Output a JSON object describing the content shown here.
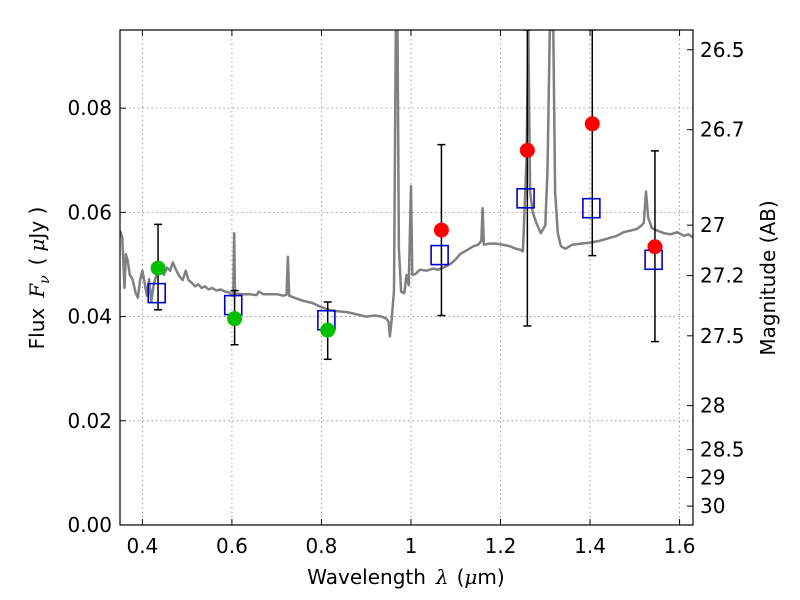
{
  "chart_data": {
    "type": "scatter",
    "title": "",
    "xlabel": "Wavelength",
    "xlabel_symbol": "λ",
    "xlabel_unit_open": "(",
    "xlabel_unit_mu": "μ",
    "xlabel_unit_rest": "m)",
    "ylabel": "Flux",
    "ylabel_symbol": "F",
    "ylabel_subscript": "ν",
    "ylabel_unit_open": "(",
    "ylabel_unit_mu": "μ",
    "ylabel_unit_rest": "Jy )",
    "y2label": "Magnitude (AB)",
    "xlim": [
      0.35,
      1.63
    ],
    "ylim": [
      0.0,
      0.095
    ],
    "grid": true,
    "x_ticks": [
      {
        "value": 0.4,
        "label": "0.4"
      },
      {
        "value": 0.6,
        "label": "0.6"
      },
      {
        "value": 0.8,
        "label": "0.8"
      },
      {
        "value": 1.0,
        "label": "1"
      },
      {
        "value": 1.2,
        "label": "1.2"
      },
      {
        "value": 1.4,
        "label": "1.4"
      },
      {
        "value": 1.6,
        "label": "1.6"
      }
    ],
    "y_ticks": [
      {
        "value": 0.0,
        "label": "0.00"
      },
      {
        "value": 0.02,
        "label": "0.02"
      },
      {
        "value": 0.04,
        "label": "0.04"
      },
      {
        "value": 0.06,
        "label": "0.06"
      },
      {
        "value": 0.08,
        "label": "0.08"
      }
    ],
    "y2_ticks": [
      {
        "value": 26.5,
        "label": "26.5"
      },
      {
        "value": 26.7,
        "label": "26.7"
      },
      {
        "value": 27.0,
        "label": "27"
      },
      {
        "value": 27.2,
        "label": "27.2"
      },
      {
        "value": 27.5,
        "label": "27.5"
      },
      {
        "value": 28.0,
        "label": "28"
      },
      {
        "value": 28.5,
        "label": "28.5"
      },
      {
        "value": 29.0,
        "label": "29"
      },
      {
        "value": 30.0,
        "label": "30"
      }
    ],
    "colors": {
      "model_line": "#808080",
      "observed_blue": "#00c000",
      "observed_red": "#ff0000",
      "model_photometry": "#0000cc",
      "error_bar": "#000000",
      "grid": "#888888"
    },
    "observed_points": [
      {
        "x": 0.435,
        "y": 0.0493,
        "yerr_low": 0.0413,
        "yerr_high": 0.0577,
        "color": "green"
      },
      {
        "x": 0.606,
        "y": 0.0396,
        "yerr_low": 0.0346,
        "yerr_high": 0.045,
        "color": "green"
      },
      {
        "x": 0.814,
        "y": 0.0374,
        "yerr_low": 0.0318,
        "yerr_high": 0.0428,
        "color": "green"
      },
      {
        "x": 1.068,
        "y": 0.0566,
        "yerr_low": 0.0402,
        "yerr_high": 0.073,
        "color": "red"
      },
      {
        "x": 1.26,
        "y": 0.0719,
        "yerr_low": 0.0382,
        "yerr_high": 0.095,
        "color": "red"
      },
      {
        "x": 1.405,
        "y": 0.077,
        "yerr_low": 0.0517,
        "yerr_high": 0.095,
        "color": "red"
      },
      {
        "x": 1.545,
        "y": 0.0534,
        "yerr_low": 0.0352,
        "yerr_high": 0.0718,
        "color": "red"
      }
    ],
    "model_photometry": [
      {
        "x": 0.432,
        "y": 0.0445
      },
      {
        "x": 0.603,
        "y": 0.0422
      },
      {
        "x": 0.811,
        "y": 0.0393
      },
      {
        "x": 1.064,
        "y": 0.0518
      },
      {
        "x": 1.256,
        "y": 0.0627
      },
      {
        "x": 1.403,
        "y": 0.0608
      },
      {
        "x": 1.542,
        "y": 0.0509
      }
    ],
    "model_spectrum": [
      [
        0.35,
        0.0565
      ],
      [
        0.355,
        0.0552
      ],
      [
        0.36,
        0.0455
      ],
      [
        0.363,
        0.052
      ],
      [
        0.367,
        0.0508
      ],
      [
        0.372,
        0.048
      ],
      [
        0.378,
        0.0472
      ],
      [
        0.385,
        0.0445
      ],
      [
        0.39,
        0.0436
      ],
      [
        0.395,
        0.047
      ],
      [
        0.4,
        0.0488
      ],
      [
        0.405,
        0.0465
      ],
      [
        0.41,
        0.044
      ],
      [
        0.415,
        0.0472
      ],
      [
        0.42,
        0.0428
      ],
      [
        0.425,
        0.046
      ],
      [
        0.432,
        0.0482
      ],
      [
        0.438,
        0.0495
      ],
      [
        0.443,
        0.0488
      ],
      [
        0.448,
        0.048
      ],
      [
        0.455,
        0.0494
      ],
      [
        0.462,
        0.0488
      ],
      [
        0.468,
        0.0504
      ],
      [
        0.475,
        0.049
      ],
      [
        0.482,
        0.0478
      ],
      [
        0.49,
        0.047
      ],
      [
        0.497,
        0.0488
      ],
      [
        0.503,
        0.047
      ],
      [
        0.51,
        0.0465
      ],
      [
        0.518,
        0.0458
      ],
      [
        0.525,
        0.0462
      ],
      [
        0.532,
        0.0455
      ],
      [
        0.54,
        0.0458
      ],
      [
        0.548,
        0.0452
      ],
      [
        0.556,
        0.0455
      ],
      [
        0.565,
        0.045
      ],
      [
        0.575,
        0.0452
      ],
      [
        0.585,
        0.0448
      ],
      [
        0.595,
        0.0446
      ],
      [
        0.6,
        0.044
      ],
      [
        0.603,
        0.044
      ],
      [
        0.605,
        0.056
      ],
      [
        0.607,
        0.0442
      ],
      [
        0.612,
        0.0444
      ],
      [
        0.625,
        0.0443
      ],
      [
        0.64,
        0.0443
      ],
      [
        0.655,
        0.0441
      ],
      [
        0.66,
        0.0448
      ],
      [
        0.67,
        0.0443
      ],
      [
        0.685,
        0.0443
      ],
      [
        0.7,
        0.0443
      ],
      [
        0.715,
        0.044
      ],
      [
        0.722,
        0.0442
      ],
      [
        0.725,
        0.0515
      ],
      [
        0.728,
        0.044
      ],
      [
        0.74,
        0.0436
      ],
      [
        0.76,
        0.043
      ],
      [
        0.78,
        0.0426
      ],
      [
        0.8,
        0.0418
      ],
      [
        0.82,
        0.0412
      ],
      [
        0.84,
        0.041
      ],
      [
        0.86,
        0.0408
      ],
      [
        0.88,
        0.0404
      ],
      [
        0.9,
        0.04
      ],
      [
        0.92,
        0.0402
      ],
      [
        0.935,
        0.04
      ],
      [
        0.945,
        0.0396
      ],
      [
        0.95,
        0.039
      ],
      [
        0.953,
        0.0362
      ],
      [
        0.957,
        0.0395
      ],
      [
        0.962,
        0.045
      ],
      [
        0.966,
        0.095
      ],
      [
        0.97,
        0.095
      ],
      [
        0.973,
        0.053
      ],
      [
        0.978,
        0.0448
      ],
      [
        0.985,
        0.0445
      ],
      [
        0.99,
        0.048
      ],
      [
        0.995,
        0.046
      ],
      [
        1.0,
        0.065
      ],
      [
        1.003,
        0.048
      ],
      [
        1.01,
        0.0482
      ],
      [
        1.02,
        0.049
      ],
      [
        1.035,
        0.0488
      ],
      [
        1.05,
        0.0492
      ],
      [
        1.06,
        0.049
      ],
      [
        1.075,
        0.0495
      ],
      [
        1.09,
        0.0502
      ],
      [
        1.1,
        0.051
      ],
      [
        1.11,
        0.052
      ],
      [
        1.12,
        0.0525
      ],
      [
        1.13,
        0.053
      ],
      [
        1.14,
        0.0535
      ],
      [
        1.15,
        0.0538
      ],
      [
        1.157,
        0.0545
      ],
      [
        1.16,
        0.0608
      ],
      [
        1.163,
        0.0538
      ],
      [
        1.175,
        0.054
      ],
      [
        1.19,
        0.054
      ],
      [
        1.205,
        0.0538
      ],
      [
        1.22,
        0.0535
      ],
      [
        1.235,
        0.053
      ],
      [
        1.245,
        0.0528
      ],
      [
        1.25,
        0.0525
      ],
      [
        1.258,
        0.07
      ],
      [
        1.262,
        0.095
      ],
      [
        1.266,
        0.064
      ],
      [
        1.272,
        0.06
      ],
      [
        1.28,
        0.058
      ],
      [
        1.29,
        0.056
      ],
      [
        1.3,
        0.0575
      ],
      [
        1.305,
        0.068
      ],
      [
        1.31,
        0.095
      ],
      [
        1.318,
        0.095
      ],
      [
        1.322,
        0.064
      ],
      [
        1.328,
        0.056
      ],
      [
        1.335,
        0.0535
      ],
      [
        1.345,
        0.053
      ],
      [
        1.36,
        0.0538
      ],
      [
        1.38,
        0.054
      ],
      [
        1.4,
        0.0542
      ],
      [
        1.42,
        0.0545
      ],
      [
        1.44,
        0.055
      ],
      [
        1.46,
        0.0555
      ],
      [
        1.475,
        0.0562
      ],
      [
        1.49,
        0.0565
      ],
      [
        1.505,
        0.0568
      ],
      [
        1.515,
        0.0575
      ],
      [
        1.52,
        0.058
      ],
      [
        1.525,
        0.064
      ],
      [
        1.53,
        0.059
      ],
      [
        1.538,
        0.057
      ],
      [
        1.55,
        0.0565
      ],
      [
        1.565,
        0.056
      ],
      [
        1.58,
        0.0558
      ],
      [
        1.595,
        0.0562
      ],
      [
        1.61,
        0.0555
      ],
      [
        1.62,
        0.0558
      ],
      [
        1.63,
        0.0552
      ]
    ]
  }
}
